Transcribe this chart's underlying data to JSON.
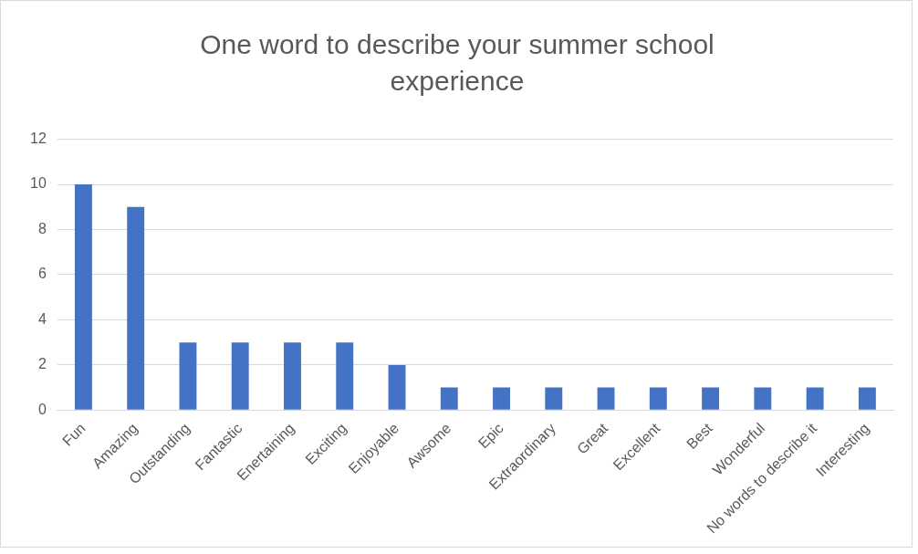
{
  "chart_data": {
    "type": "bar",
    "title": "One word to describe your summer school experience",
    "categories": [
      "Fun",
      "Amazing",
      "Outstanding",
      "Fantastic",
      "Enertaining",
      "Exciting",
      "Enjoyable",
      "Awsome",
      "Epic",
      "Extraordinary",
      "Great",
      "Excellent",
      "Best",
      "Wonderful",
      "No words to describe it",
      "Interesting"
    ],
    "values": [
      10,
      9,
      3,
      3,
      3,
      3,
      2,
      1,
      1,
      1,
      1,
      1,
      1,
      1,
      1,
      1
    ],
    "color": "#4472c4",
    "ylim": [
      0,
      12
    ],
    "yticks": [
      0,
      2,
      4,
      6,
      8,
      10,
      12
    ],
    "grid": "y",
    "legend": false
  }
}
